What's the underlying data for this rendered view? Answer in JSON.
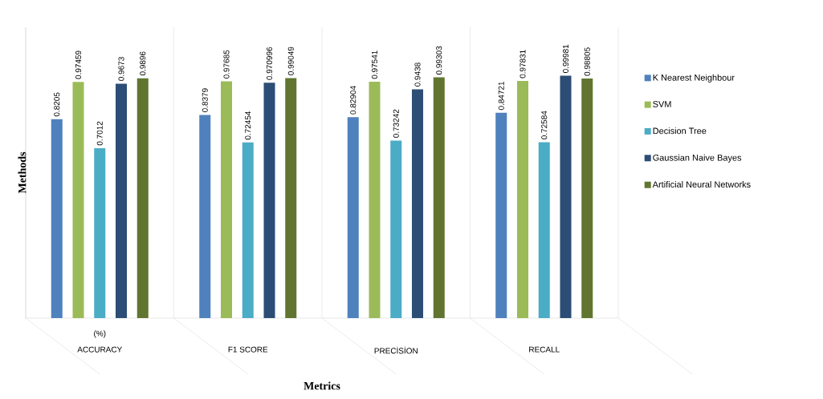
{
  "chart_data": {
    "type": "bar",
    "xlabel": "Metrics",
    "ylabel": "Methods",
    "categories": [
      "ACCURACY",
      "F1 SCORE",
      "PRECİSİON",
      "RECALL"
    ],
    "series": [
      {
        "name": "K Nearest Neighbour",
        "color": "#4f81bd",
        "values": [
          0.8205,
          0.8379,
          0.82904,
          0.84721
        ]
      },
      {
        "name": "SVM",
        "color": "#9bbb59",
        "values": [
          0.97459,
          0.97685,
          0.97541,
          0.97831
        ]
      },
      {
        "name": "Decision Tree",
        "color": "#4bacc6",
        "values": [
          0.7012,
          0.72454,
          0.73242,
          0.72584
        ]
      },
      {
        "name": "Gaussian Naive Bayes",
        "color": "#2c4d75",
        "values": [
          0.9673,
          0.970996,
          0.9438,
          0.99981
        ]
      },
      {
        "name": "Artificial Neural Networks",
        "color": "#617530",
        "values": [
          0.9896,
          0.99049,
          0.99303,
          0.98805
        ]
      }
    ],
    "ylim": [
      0,
      1.2
    ],
    "data_labels": true,
    "legend": "right",
    "annotations": [
      "(%)"
    ]
  }
}
